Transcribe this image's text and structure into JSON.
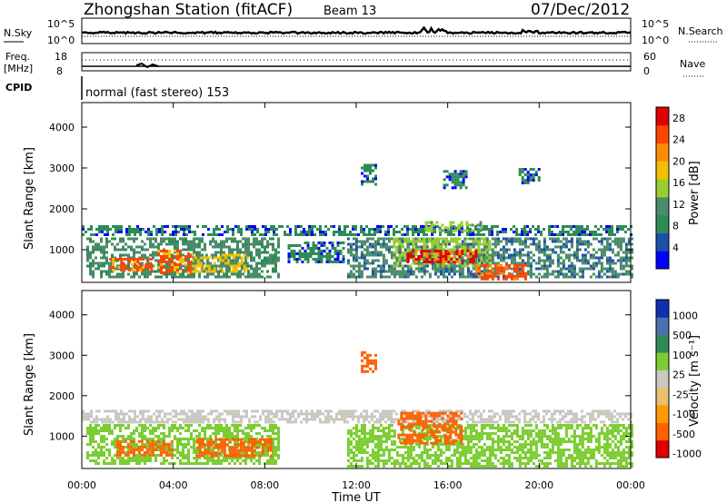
{
  "header": {
    "station": "Zhongshan Station (fitACF)",
    "beam": "Beam 13",
    "date": "07/Dec/2012"
  },
  "top_panels": {
    "nsky_label": "N.Sky",
    "freq_label_1": "Freq.",
    "freq_label_2": "[MHz]",
    "cpid_label": "CPID",
    "nsearch_label": "N.Search",
    "nave_label": "Nave",
    "nsky_ticks": [
      "10^5",
      "10^0"
    ],
    "nsearch_ticks": [
      "10^5",
      "10^0"
    ],
    "freq_ticks": [
      "18",
      "8"
    ],
    "nave_ticks": [
      "60",
      "0"
    ],
    "cpid_text": "normal (fast stereo) 153"
  },
  "colors": {
    "power_scale": [
      "#0000ff",
      "#1e4fa8",
      "#2e8b57",
      "#4a8b6a",
      "#9acd32",
      "#f0c000",
      "#ff8c00",
      "#ff4500",
      "#e00000"
    ],
    "velocity_scale": [
      "#e00000",
      "#ff6000",
      "#ff9a00",
      "#e8c070",
      "#c8c8c0",
      "#7ccd32",
      "#2e8b57",
      "#4f6fb0",
      "#1030b0"
    ]
  },
  "chart_data": [
    {
      "type": "heatmap",
      "quantity": "Power",
      "xlabel": "",
      "ylabel": "Slant Range [km]",
      "x_ticks": [
        "00:00",
        "04:00",
        "08:00",
        "12:00",
        "16:00",
        "20:00",
        "00:00"
      ],
      "xlim": [
        0,
        24
      ],
      "ylim": [
        200,
        4600
      ],
      "y_ticks": [
        1000,
        2000,
        3000,
        4000
      ],
      "colorbar_label": "Power [dB]",
      "colorbar_ticks": [
        4,
        8,
        12,
        16,
        20,
        24,
        28
      ],
      "colorbar_range": [
        0,
        30
      ],
      "regions": [
        {
          "x0": 0.0,
          "x1": 24.0,
          "y0": 1350,
          "y1": 1600,
          "value": 7
        },
        {
          "x0": 0.2,
          "x1": 8.6,
          "y0": 350,
          "y1": 1300,
          "value": 13
        },
        {
          "x0": 1.2,
          "x1": 3.0,
          "y0": 500,
          "y1": 800,
          "value": 24
        },
        {
          "x0": 3.3,
          "x1": 4.8,
          "y0": 450,
          "y1": 1000,
          "value": 24
        },
        {
          "x0": 4.8,
          "x1": 7.2,
          "y0": 450,
          "y1": 900,
          "value": 18
        },
        {
          "x0": 11.6,
          "x1": 24.0,
          "y0": 300,
          "y1": 1300,
          "value": 10
        },
        {
          "x0": 13.6,
          "x1": 17.8,
          "y0": 600,
          "y1": 1300,
          "value": 15
        },
        {
          "x0": 14.2,
          "x1": 17.2,
          "y0": 700,
          "y1": 1000,
          "value": 27
        },
        {
          "x0": 17.2,
          "x1": 19.4,
          "y0": 250,
          "y1": 650,
          "value": 26
        },
        {
          "x0": 9.0,
          "x1": 11.5,
          "y0": 700,
          "y1": 1200,
          "value": 7
        },
        {
          "x0": 15.0,
          "x1": 17.5,
          "y0": 1450,
          "y1": 1700,
          "value": 16
        },
        {
          "x0": 12.2,
          "x1": 12.8,
          "y0": 2600,
          "y1": 3100,
          "value": 7
        },
        {
          "x0": 15.8,
          "x1": 16.8,
          "y0": 2500,
          "y1": 2950,
          "value": 7
        },
        {
          "x0": 19.1,
          "x1": 20.0,
          "y0": 2600,
          "y1": 3000,
          "value": 7
        }
      ]
    },
    {
      "type": "heatmap",
      "quantity": "Velocity",
      "xlabel": "Time UT",
      "ylabel": "Slant Range [km]",
      "x_ticks": [
        "00:00",
        "04:00",
        "08:00",
        "12:00",
        "16:00",
        "20:00",
        "00:00"
      ],
      "xlim": [
        0,
        24
      ],
      "ylim": [
        200,
        4600
      ],
      "y_ticks": [
        1000,
        2000,
        3000,
        4000
      ],
      "colorbar_label": "Velocity [m s⁻¹]",
      "colorbar_ticks": [
        "1000",
        "500",
        "100",
        "25",
        "-25",
        "-100",
        "-500",
        "-1000"
      ],
      "regions": [
        {
          "x0": 0.0,
          "x1": 24.0,
          "y0": 1350,
          "y1": 1650,
          "value": "~0"
        },
        {
          "x0": 0.2,
          "x1": 8.6,
          "y0": 300,
          "y1": 1300,
          "value": 150
        },
        {
          "x0": 1.5,
          "x1": 4.0,
          "y0": 500,
          "y1": 900,
          "value": -150
        },
        {
          "x0": 5.0,
          "x1": 8.3,
          "y0": 500,
          "y1": 950,
          "value": -200
        },
        {
          "x0": 11.6,
          "x1": 24.0,
          "y0": 250,
          "y1": 1300,
          "value": 300
        },
        {
          "x0": 13.8,
          "x1": 16.6,
          "y0": 800,
          "y1": 1600,
          "value": -150
        },
        {
          "x0": 12.2,
          "x1": 12.8,
          "y0": 2600,
          "y1": 3100,
          "value": -150
        }
      ]
    }
  ]
}
